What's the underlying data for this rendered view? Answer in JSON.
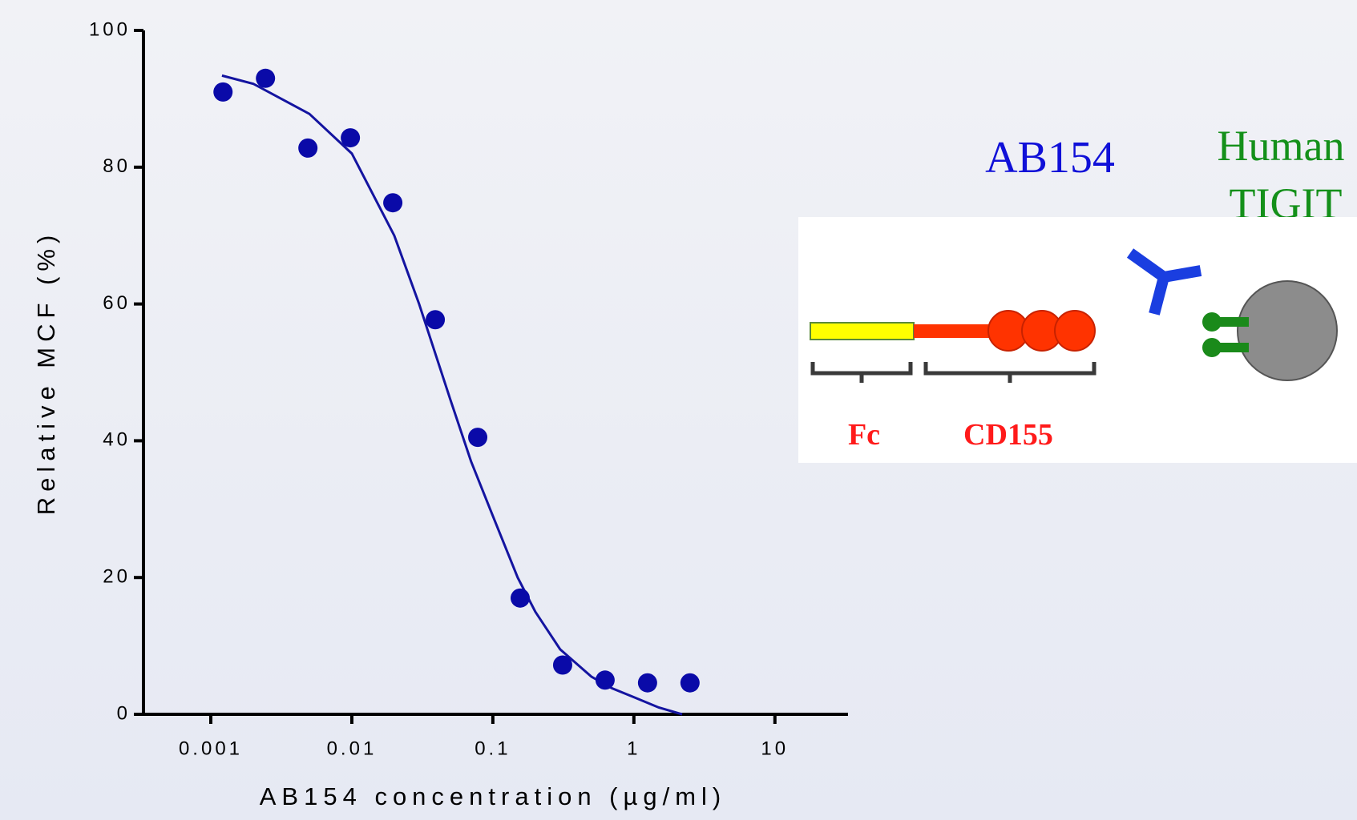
{
  "chart_data": {
    "type": "scatter",
    "xlabel": "AB154 concentration (µg/ml)",
    "ylabel": "Relative MCF (%)",
    "x": [
      0.001220703125,
      0.00244140625,
      0.0048828125,
      0.009765625,
      0.01953125,
      0.0390625,
      0.078125,
      0.15625,
      0.3125,
      0.625,
      1.25,
      2.5
    ],
    "values": [
      91,
      93,
      82.8,
      84.3,
      74.8,
      57.7,
      40.5,
      17,
      7.2,
      5,
      4.6,
      4.6
    ],
    "color": "#0a0aa8",
    "fit": {
      "x": [
        0.0012,
        0.002,
        0.005,
        0.01,
        0.02,
        0.03,
        0.05,
        0.07,
        0.1,
        0.15,
        0.2,
        0.3,
        0.5,
        0.7,
        1,
        1.5,
        2.2
      ],
      "values": [
        93.4,
        92.2,
        87.8,
        82,
        70,
        60,
        46,
        37,
        29,
        20,
        15,
        9.5,
        5.5,
        3.8,
        2.5,
        1,
        0
      ],
      "color": "#1414a0"
    },
    "xscale": "log",
    "xlim": [
      0.0003,
      33
    ],
    "xticks": [
      0.001,
      0.01,
      0.1,
      1,
      10
    ],
    "ylim": [
      0,
      100
    ],
    "yticks": [
      0,
      20,
      40,
      60,
      80,
      100
    ]
  },
  "diagram": {
    "antibody_label": "AB154",
    "target_label_1": "Human",
    "target_label_2": "TIGIT",
    "fc_label": "Fc",
    "cd155_label": "CD155"
  }
}
